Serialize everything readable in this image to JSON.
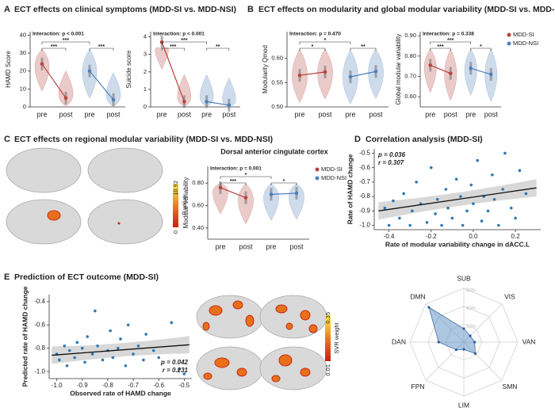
{
  "sections": [
    {
      "label": "A",
      "title": "ECT effects on clinical symptoms (MDD-SI vs. MDD-NSI)"
    },
    {
      "label": "B",
      "title": "ECT effects on modularity and global modular variability (MDD-SI vs. MDD-NSI)"
    },
    {
      "label": "C",
      "title": "ECT effects on regional modular variability (MDD-SI vs. MDD-NSI)"
    },
    {
      "label": "D",
      "title": "Correlation analysis (MDD-SI)"
    },
    {
      "label": "E",
      "title": "Prediction of ECT outcome (MDD-SI)"
    }
  ],
  "colorbars": [
    {
      "title": "F value",
      "ticks": [
        0,
        10.92
      ]
    },
    {
      "title": "SVR weight",
      "ticks": [
        0.01,
        0.35
      ]
    }
  ],
  "chart_data": [
    {
      "type": "violin",
      "annotation": "Interaction: p < 0.001",
      "y_label": "HAMD Score",
      "categories": [
        "pre",
        "post",
        "pre",
        "post"
      ],
      "series": [
        {
          "color": "#b5443f",
          "values": [
            24,
            5
          ]
        },
        {
          "color": "#4f7fb8",
          "values": [
            20,
            4
          ]
        }
      ],
      "ylim": [
        0,
        42
      ],
      "yticks": [
        0,
        10,
        20,
        30,
        40
      ],
      "significance": [
        "***",
        "***",
        "***"
      ]
    },
    {
      "type": "violin",
      "annotation": "Interaction: p < 0.001",
      "y_label": "Suicide score",
      "categories": [
        "pre",
        "post",
        "pre",
        "post"
      ],
      "series": [
        {
          "color": "#b5443f",
          "values": [
            3.7,
            0.3
          ]
        },
        {
          "color": "#4f7fb8",
          "values": [
            0.3,
            0.1
          ]
        }
      ],
      "ylim": [
        0,
        4.3
      ],
      "yticks": [
        0,
        1,
        2,
        3,
        4
      ],
      "significance": [
        "***",
        "***",
        "**"
      ]
    },
    {
      "type": "violin",
      "annotation": "Interaction: p = 0.470",
      "y_label": "Modularity Qmod",
      "categories": [
        "pre",
        "post",
        "pre",
        "post"
      ],
      "series": [
        {
          "color": "#b5443f",
          "values": [
            0.565,
            0.572
          ]
        },
        {
          "color": "#4f7fb8",
          "values": [
            0.562,
            0.573
          ]
        }
      ],
      "ylim": [
        0.5,
        0.655
      ],
      "yticks": [
        {
          "value": 0.5,
          "label": "0.50"
        },
        0.55,
        {
          "value": 0.6,
          "label": "0.60"
        }
      ],
      "significance": [
        "*",
        "*",
        "**"
      ]
    },
    {
      "type": "violin",
      "annotation": "Interaction: p = 0.338",
      "y_label": "Global modular variability",
      "categories": [
        "pre",
        "post",
        "pre",
        "post"
      ],
      "series": [
        {
          "name": "MDD-SI",
          "color": "#b5443f",
          "values": [
            0.755,
            0.715
          ]
        },
        {
          "name": "MDD-NSI",
          "color": "#4f7fb8",
          "values": [
            0.74,
            0.71
          ]
        }
      ],
      "ylim": [
        0.55,
        0.92
      ],
      "yticks": [
        {
          "value": 0.6,
          "label": "0.60"
        },
        {
          "value": 0.7,
          "label": "0.70"
        },
        {
          "value": 0.8,
          "label": "0.80"
        },
        {
          "value": 0.9,
          "label": "0.90"
        }
      ],
      "significance": [
        "***",
        "***",
        "*"
      ]
    },
    {
      "type": "violin",
      "title": "Dorsal anterior cingulate cortex",
      "annotation": "Interaction: p = 0.001",
      "y_label": "Modular variability",
      "categories": [
        "pre",
        "post",
        "pre",
        "post"
      ],
      "series": [
        {
          "name": "MDD-SI",
          "color": "#b5443f",
          "values": [
            0.76,
            0.67
          ]
        },
        {
          "name": "MDD-NSI",
          "color": "#4f7fb8",
          "values": [
            0.7,
            0.71
          ]
        }
      ],
      "ylim": [
        0.3,
        0.95
      ],
      "yticks": [
        {
          "value": 0.4,
          "label": "0.40"
        },
        {
          "value": 0.6,
          "label": "0.60"
        },
        {
          "value": 0.8,
          "label": "0.80"
        }
      ],
      "significance": [
        "***",
        "*",
        "*"
      ]
    },
    {
      "type": "scatter",
      "x_label": "Rate of modular variability change in dACC.L",
      "y_label": "Rate of HAMD change",
      "stats": [
        "p = 0.036",
        "r = 0.307"
      ],
      "stats_corner": "top-left",
      "color": "#2f78b5",
      "x": [
        -0.42,
        -0.4,
        -0.38,
        -0.35,
        -0.33,
        -0.3,
        -0.29,
        -0.27,
        -0.25,
        -0.22,
        -0.2,
        -0.18,
        -0.17,
        -0.15,
        -0.13,
        -0.12,
        -0.1,
        -0.08,
        -0.06,
        -0.05,
        -0.03,
        -0.01,
        0.0,
        0.02,
        0.04,
        0.05,
        0.07,
        0.09,
        0.1,
        0.12,
        0.14,
        0.15,
        0.18,
        0.2,
        0.22,
        0.25
      ],
      "y": [
        -0.88,
        -1.0,
        -0.83,
        -0.95,
        -0.78,
        -1.0,
        -0.9,
        -0.7,
        -0.85,
        -0.98,
        -0.6,
        -0.92,
        -0.82,
        -1.0,
        -0.75,
        -0.88,
        -0.95,
        -0.68,
        -0.8,
        -1.0,
        -0.9,
        -0.72,
        -0.85,
        -0.55,
        -0.97,
        -0.8,
        -0.9,
        -0.65,
        -0.82,
        -1.0,
        -0.75,
        -0.5,
        -0.88,
        -0.95,
        -0.62,
        -0.78
      ],
      "fit": {
        "x": [
          -0.45,
          0.3
        ],
        "y": [
          -0.9,
          -0.74
        ]
      },
      "xlim": [
        -0.47,
        0.32
      ],
      "xticks": [
        -0.4,
        -0.2,
        {
          "value": 0,
          "label": "0.0"
        },
        0.2
      ],
      "ylim": [
        -1.03,
        -0.47
      ],
      "yticks": [
        -0.5,
        -0.6,
        -0.7,
        -0.8,
        -0.9,
        {
          "value": -1,
          "label": "-1.0"
        }
      ]
    },
    {
      "type": "scatter",
      "x_label": "Observed rate of HAMD change",
      "y_label": "Predicted rate of HAMD change",
      "stats": [
        "p = 0.042",
        "r = 0.231"
      ],
      "stats_corner": "bottom-right",
      "color": "#2f78b5",
      "x": [
        -1.0,
        -0.99,
        -0.97,
        -0.96,
        -0.95,
        -0.93,
        -0.92,
        -0.9,
        -0.89,
        -0.88,
        -0.86,
        -0.85,
        -0.84,
        -0.82,
        -0.8,
        -0.79,
        -0.78,
        -0.76,
        -0.75,
        -0.73,
        -0.72,
        -0.7,
        -0.68,
        -0.66,
        -0.65,
        -0.62,
        -0.6,
        -0.55,
        -0.52,
        -0.5
      ],
      "y": [
        -0.85,
        -0.9,
        -0.78,
        -0.95,
        -0.82,
        -0.88,
        -0.75,
        -0.8,
        -0.92,
        -0.7,
        -0.85,
        -0.48,
        -0.78,
        -0.9,
        -0.82,
        -0.65,
        -0.88,
        -0.8,
        -0.72,
        -0.95,
        -0.6,
        -0.85,
        -0.78,
        -0.9,
        -0.68,
        -0.82,
        -0.88,
        -0.58,
        -0.98,
        -1.02
      ],
      "fit": {
        "x": [
          -1.02,
          -0.48
        ],
        "y": [
          -0.86,
          -0.77
        ]
      },
      "xlim": [
        -1.03,
        -0.47
      ],
      "xticks": [
        {
          "value": -1,
          "label": "-1.0"
        },
        -0.9,
        -0.8,
        -0.7,
        -0.6,
        -0.5
      ],
      "ylim": [
        -1.06,
        -0.34
      ],
      "yticks": [
        -0.4,
        -0.6,
        -0.8,
        {
          "value": -1,
          "label": "-1.0"
        }
      ]
    },
    {
      "type": "radar",
      "color": "#5b8fc7",
      "axes": [
        "SUB",
        "VIS",
        "VAN",
        "SMN",
        "LIM",
        "FPN",
        "DAN",
        "DMN"
      ],
      "values": [
        15,
        10,
        12,
        18,
        8,
        12,
        28,
        55
      ],
      "rlim": [
        0,
        60
      ],
      "rticks": [
        {
          "value": 20,
          "label": "20%"
        },
        {
          "value": 40,
          "label": "40%"
        },
        {
          "value": 60,
          "label": "60%"
        }
      ]
    }
  ]
}
